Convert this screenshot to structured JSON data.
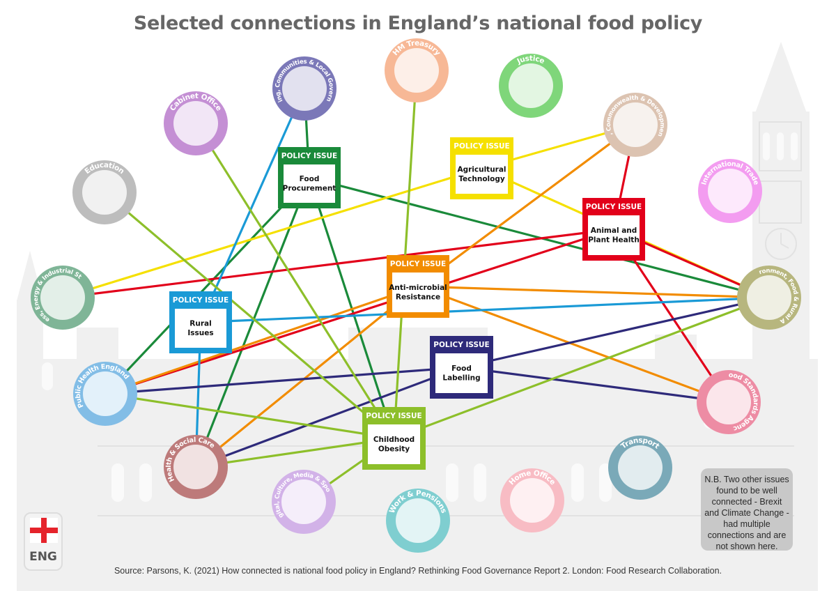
{
  "title": "Selected connections in England’s national food policy",
  "footer": "Source: Parsons, K. (2021) How connected is national food policy in England? Rethinking Food Governance Report 2. London: Food Research Collaboration.",
  "note": "N.B. Two other issues found to be well connected - Brexit and Climate Change - had multiple connections and are not shown here.",
  "badge": "ENG",
  "policy_header": "POLICY ISSUE",
  "colors": {
    "food_procurement": "#1a8a3a",
    "agricultural_technology": "#f5e000",
    "animal_plant_health": "#e2001a",
    "antimicrobial_resistance": "#f28c00",
    "rural_issues": "#1a9ad6",
    "food_labelling": "#2e2a7a",
    "childhood_obesity": "#8dbf2a"
  },
  "departments": [
    {
      "id": "housing",
      "label": "Housing, Communities & Local Government",
      "color": "#7b78b8"
    },
    {
      "id": "treasury",
      "label": "HM Treasury",
      "color": "#f7b896"
    },
    {
      "id": "justice",
      "label": "Justice",
      "color": "#7fd67a"
    },
    {
      "id": "cabinet",
      "label": "Cabinet Office",
      "color": "#c48fd4"
    },
    {
      "id": "fcdo",
      "label": "Foreign, Commonwealth & Development Office",
      "color": "#dcc3b1"
    },
    {
      "id": "education",
      "label": "Education",
      "color": "#bdbdbd"
    },
    {
      "id": "trade",
      "label": "International Trade",
      "color": "#f39cf0"
    },
    {
      "id": "beis",
      "label": "Business, Energy & Industrial Strategy",
      "color": "#7fb597"
    },
    {
      "id": "defra",
      "label": "Environment, Food & Rural Affairs",
      "color": "#b7b67e"
    },
    {
      "id": "phe",
      "label": "Public Health England",
      "color": "#82bde6"
    },
    {
      "id": "fsa",
      "label": "Food Standards Agency",
      "color": "#ed8ca4"
    },
    {
      "id": "dhsc",
      "label": "Health & Social Care",
      "color": "#bd7a7a"
    },
    {
      "id": "transport",
      "label": "Transport",
      "color": "#7aa9b8"
    },
    {
      "id": "dcms",
      "label": "Digital, Culture, Media & Sport",
      "color": "#d2b2e8"
    },
    {
      "id": "dwp",
      "label": "Work & Pensions",
      "color": "#7fced0"
    },
    {
      "id": "home",
      "label": "Home Office",
      "color": "#f8bcc4"
    }
  ],
  "issues": [
    {
      "id": "food_procurement",
      "label": "Food Procurement",
      "color": "#1a8a3a"
    },
    {
      "id": "agricultural_technology",
      "label": "Agricultural Technology",
      "color": "#f5e000"
    },
    {
      "id": "animal_plant_health",
      "label": "Animal and Plant Health",
      "color": "#e2001a"
    },
    {
      "id": "antimicrobial_resistance",
      "label": "Anti-microbial Resistance",
      "color": "#f28c00"
    },
    {
      "id": "rural_issues",
      "label": "Rural Issues",
      "color": "#1a9ad6"
    },
    {
      "id": "food_labelling",
      "label": "Food Labelling",
      "color": "#2e2a7a"
    },
    {
      "id": "childhood_obesity",
      "label": "Childhood Obesity",
      "color": "#8dbf2a"
    }
  ],
  "connections": [
    {
      "from": "food_procurement",
      "to": "housing"
    },
    {
      "from": "food_procurement",
      "to": "childhood_obesity"
    },
    {
      "from": "food_procurement",
      "to": "defra"
    },
    {
      "from": "food_procurement",
      "to": "phe"
    },
    {
      "from": "food_procurement",
      "to": "dhsc"
    },
    {
      "from": "agricultural_technology",
      "to": "fcdo"
    },
    {
      "from": "agricultural_technology",
      "to": "beis"
    },
    {
      "from": "agricultural_technology",
      "to": "defra"
    },
    {
      "from": "animal_plant_health",
      "to": "fcdo"
    },
    {
      "from": "animal_plant_health",
      "to": "beis"
    },
    {
      "from": "animal_plant_health",
      "to": "defra"
    },
    {
      "from": "animal_plant_health",
      "to": "fsa"
    },
    {
      "from": "animal_plant_health",
      "to": "phe"
    },
    {
      "from": "antimicrobial_resistance",
      "to": "fcdo"
    },
    {
      "from": "antimicrobial_resistance",
      "to": "defra"
    },
    {
      "from": "antimicrobial_resistance",
      "to": "fsa"
    },
    {
      "from": "antimicrobial_resistance",
      "to": "phe"
    },
    {
      "from": "antimicrobial_resistance",
      "to": "dhsc"
    },
    {
      "from": "rural_issues",
      "to": "housing"
    },
    {
      "from": "rural_issues",
      "to": "defra"
    },
    {
      "from": "rural_issues",
      "to": "dhsc"
    },
    {
      "from": "food_labelling",
      "to": "phe"
    },
    {
      "from": "food_labelling",
      "to": "fsa"
    },
    {
      "from": "food_labelling",
      "to": "defra"
    },
    {
      "from": "food_labelling",
      "to": "dhsc"
    },
    {
      "from": "childhood_obesity",
      "to": "treasury"
    },
    {
      "from": "childhood_obesity",
      "to": "cabinet"
    },
    {
      "from": "childhood_obesity",
      "to": "education"
    },
    {
      "from": "childhood_obesity",
      "to": "phe"
    },
    {
      "from": "childhood_obesity",
      "to": "dhsc"
    },
    {
      "from": "childhood_obesity",
      "to": "defra"
    },
    {
      "from": "childhood_obesity",
      "to": "dcms"
    }
  ]
}
